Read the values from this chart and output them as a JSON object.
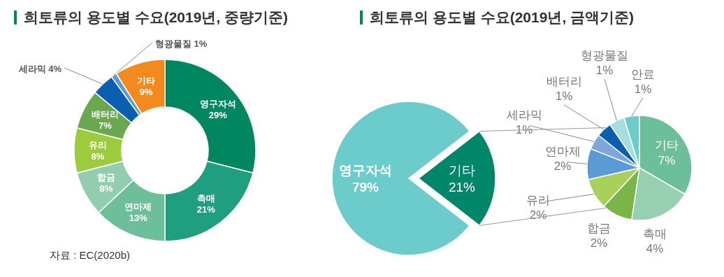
{
  "chart_data": [
    {
      "type": "donut",
      "title": "희토류의 용도별 수요(2019년, 중량기준)",
      "categories": [
        "영구자석",
        "촉매",
        "연마제",
        "합금",
        "유리",
        "배터리",
        "세라믹",
        "형광물질",
        "기타"
      ],
      "values": [
        29,
        21,
        13,
        8,
        8,
        7,
        4,
        1,
        9
      ],
      "colors": [
        "#00875f",
        "#1f9e80",
        "#6dbf9c",
        "#93cdb0",
        "#9ccc3c",
        "#6aa84f",
        "#0a5fb0",
        "#5b9bd5",
        "#f28a1e"
      ],
      "value_labels": [
        "29%",
        "21%",
        "13%",
        "8%",
        "8%",
        "7%",
        "4%",
        "1%",
        "9%"
      ],
      "annotations": [
        "자료 : EC(2020b)"
      ]
    },
    {
      "type": "pie",
      "title": "희토류의 용도별 수요(2019년, 금액기준)",
      "categories": [
        "영구자석",
        "기타"
      ],
      "values": [
        79,
        21
      ],
      "colors": [
        "#6ccbcb",
        "#00876a"
      ],
      "value_labels": [
        "79%",
        "21%"
      ]
    },
    {
      "type": "pie",
      "categories": [
        "기타",
        "촉매",
        "합금",
        "유리",
        "연마제",
        "세라믹",
        "배터리",
        "형광물질",
        "안료"
      ],
      "values": [
        7,
        4,
        2,
        2,
        2,
        1,
        1,
        1,
        1
      ],
      "colors": [
        "#6dbf9c",
        "#96cfb2",
        "#7ab547",
        "#a8d05a",
        "#5b9bd5",
        "#7da7d8",
        "#0a5fb0",
        "#a8dde0",
        "#6ccbcb"
      ],
      "value_labels": [
        "7%",
        "4%",
        "2%",
        "2%",
        "2%",
        "1%",
        "1%",
        "1%",
        "1%"
      ]
    }
  ]
}
